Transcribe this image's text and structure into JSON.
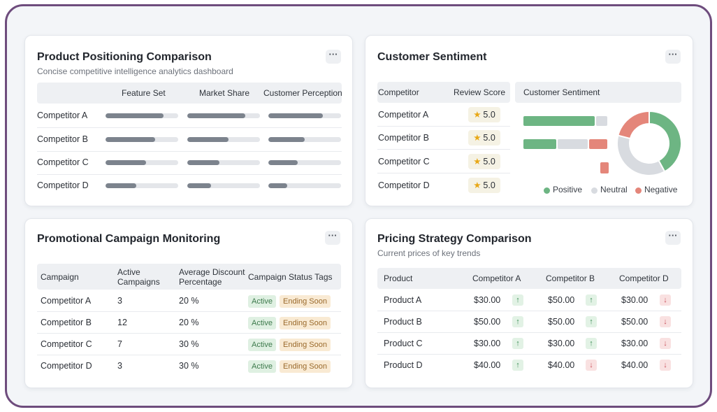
{
  "colors": {
    "positive": "#6db583",
    "neutral": "#d8dbe0",
    "negative": "#e4867a",
    "bar": "#7c838d",
    "frame": "#6e4c7d"
  },
  "positioning": {
    "title": "Product Positioning Comparison",
    "subtitle": "Concise competitive intelligence analytics dashboard",
    "more_icon": "ellipsis-icon",
    "columns": [
      "Feature Set",
      "Market Share",
      "Customer Perception"
    ],
    "rows": [
      {
        "name": "Competitor A",
        "levels": [
          0.8,
          0.8,
          0.75
        ]
      },
      {
        "name": "Competitor B",
        "levels": [
          0.68,
          0.57,
          0.5
        ]
      },
      {
        "name": "Competitor C",
        "levels": [
          0.56,
          0.44,
          0.4
        ]
      },
      {
        "name": "Competitor D",
        "levels": [
          0.42,
          0.33,
          0.26
        ]
      }
    ]
  },
  "sentiment": {
    "title": "Customer Sentiment",
    "more_icon": "ellipsis-icon",
    "headers": {
      "competitor": "Competitor",
      "score": "Review Score",
      "chart": "Customer Sentiment"
    },
    "rows": [
      {
        "name": "Competitor A",
        "score": "5.0"
      },
      {
        "name": "Competitor B",
        "score": "5.0"
      },
      {
        "name": "Competitor C",
        "score": "5.0"
      },
      {
        "name": "Competitor D",
        "score": "5.0"
      }
    ],
    "star_icon": "star-icon",
    "legend": [
      "Positive",
      "Neutral",
      "Negative"
    ],
    "stacked_bars": [
      {
        "positive": 0.85,
        "neutral": 0.15,
        "negative": 0.0
      },
      {
        "positive": 0.4,
        "neutral": 0.37,
        "negative": 0.23
      },
      {
        "positive": 0.0,
        "neutral": 0.0,
        "negative": 0.1
      }
    ],
    "donut": {
      "positive": 0.42,
      "neutral": 0.37,
      "negative": 0.21
    }
  },
  "campaigns": {
    "title": "Promotional Campaign Monitoring",
    "more_icon": "ellipsis-icon",
    "headers": [
      "Campaign",
      "Active Campaigns",
      "Average Discount Percentage",
      "Campaign Status Tags"
    ],
    "rows": [
      {
        "name": "Competitor A",
        "active": "3",
        "discount": "20 %",
        "tags": [
          "Active",
          "Ending Soon"
        ]
      },
      {
        "name": "Competitor B",
        "active": "12",
        "discount": "20 %",
        "tags": [
          "Active",
          "Ending Soon"
        ]
      },
      {
        "name": "Competitor C",
        "active": "7",
        "discount": "30 %",
        "tags": [
          "Active",
          "Ending Soon"
        ]
      },
      {
        "name": "Competitor D",
        "active": "3",
        "discount": "30 %",
        "tags": [
          "Active",
          "Ending Soon"
        ]
      }
    ]
  },
  "pricing": {
    "title": "Pricing Strategy Comparison",
    "subtitle": "Current prices of key trends",
    "more_icon": "ellipsis-icon",
    "headers": [
      "Product",
      "Competitor A",
      "Competitor B",
      "Competitor D"
    ],
    "rows": [
      {
        "name": "Product A",
        "prices": [
          {
            "value": "$30.00",
            "trend": "up"
          },
          {
            "value": "$50.00",
            "trend": "up"
          },
          {
            "value": "$30.00",
            "trend": "down"
          }
        ]
      },
      {
        "name": "Product B",
        "prices": [
          {
            "value": "$50.00",
            "trend": "up"
          },
          {
            "value": "$50.00",
            "trend": "up"
          },
          {
            "value": "$50.00",
            "trend": "down"
          }
        ]
      },
      {
        "name": "Product C",
        "prices": [
          {
            "value": "$30.00",
            "trend": "up"
          },
          {
            "value": "$30.00",
            "trend": "up"
          },
          {
            "value": "$30.00",
            "trend": "down"
          }
        ]
      },
      {
        "name": "Product D",
        "prices": [
          {
            "value": "$40.00",
            "trend": "up"
          },
          {
            "value": "$40.00",
            "trend": "down"
          },
          {
            "value": "$40.00",
            "trend": "down"
          }
        ]
      }
    ]
  }
}
